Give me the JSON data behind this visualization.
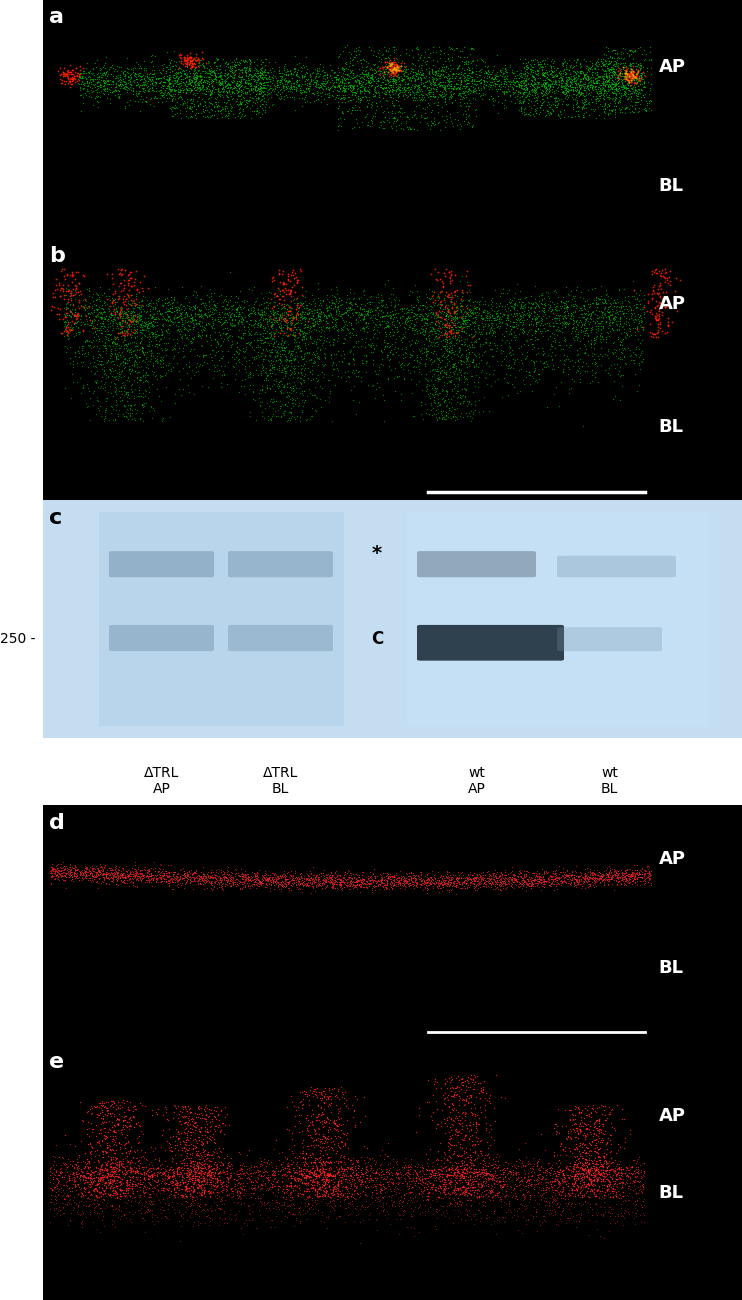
{
  "panels": [
    "a",
    "b",
    "c",
    "d",
    "e"
  ],
  "bg_color": "#000000",
  "white": "#ffffff",
  "panel_a": {
    "label": "a",
    "ap_label": "AP",
    "bl_label": "BL"
  },
  "panel_b": {
    "label": "b",
    "ap_label": "AP",
    "bl_label": "BL",
    "scale_bar": true
  },
  "panel_c": {
    "label": "c",
    "bg_color": "#cde0f0",
    "left_bg": "#b8d5ed",
    "right_bg": "#cde5f5",
    "marker_250": "250 -",
    "star": "*",
    "C_label": "C",
    "lane_labels": [
      "ΔTRL\nAP",
      "ΔTRL\nBL",
      "wt\nAP",
      "wt\nBL"
    ]
  },
  "panel_d": {
    "label": "d",
    "ap_label": "AP",
    "bl_label": "BL",
    "scale_bar": true
  },
  "panel_e": {
    "label": "e",
    "ap_label": "AP",
    "bl_label": "BL"
  }
}
